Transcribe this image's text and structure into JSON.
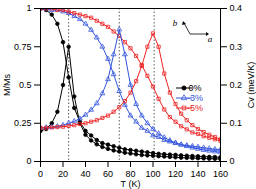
{
  "chart_data": {
    "type": "line",
    "x_label": "T (K)",
    "y_label": "M/Ms",
    "y2_label": "Cv (meV/K)",
    "x": [
      0,
      5,
      10,
      15,
      20,
      25,
      30,
      35,
      40,
      45,
      50,
      55,
      60,
      65,
      70,
      75,
      80,
      85,
      90,
      95,
      100,
      105,
      110,
      115,
      120,
      125,
      130,
      135,
      140,
      145,
      150,
      155,
      160
    ],
    "xlim": [
      0,
      160
    ],
    "xticks": [
      0,
      20,
      40,
      60,
      80,
      100,
      120,
      140,
      160
    ],
    "ylim": [
      0,
      1
    ],
    "yticks": [
      0,
      0.25,
      0.5,
      0.75,
      1
    ],
    "y2lim": [
      0,
      0.4
    ],
    "y2ticks": [
      0,
      0.1,
      0.2,
      0.3,
      0.4
    ],
    "vlines": [
      25,
      70,
      101
    ],
    "annotations": [
      {
        "text": "a"
      },
      {
        "text": "b"
      }
    ],
    "legend": "right",
    "series": [
      {
        "name": "0%",
        "color": "#000000",
        "marker": "circle",
        "values": [
          1,
          0.99,
          0.96,
          0.9,
          0.78,
          0.55,
          0.35,
          0.26,
          0.2,
          0.17,
          0.14,
          0.12,
          0.11,
          0.1,
          0.09,
          0.08,
          0.075,
          0.07,
          0.065,
          0.06,
          0.055,
          0.05,
          0.048,
          0.045,
          0.043,
          0.04,
          0.038,
          0.036,
          0.034,
          0.032,
          0.03,
          0.029,
          0.028
        ]
      },
      {
        "name": "-3%",
        "color": "#3355dd",
        "marker": "triangle-open",
        "values": [
          1,
          1,
          0.99,
          0.99,
          0.98,
          0.97,
          0.95,
          0.93,
          0.9,
          0.86,
          0.81,
          0.75,
          0.67,
          0.57,
          0.46,
          0.37,
          0.3,
          0.26,
          0.22,
          0.2,
          0.17,
          0.16,
          0.14,
          0.13,
          0.12,
          0.11,
          0.105,
          0.1,
          0.095,
          0.09,
          0.085,
          0.08,
          0.078
        ]
      },
      {
        "name": "-5%",
        "color": "#ee2222",
        "marker": "square-open",
        "values": [
          1,
          1,
          1,
          0.99,
          0.99,
          0.98,
          0.97,
          0.96,
          0.95,
          0.94,
          0.92,
          0.9,
          0.88,
          0.85,
          0.82,
          0.78,
          0.74,
          0.69,
          0.63,
          0.56,
          0.49,
          0.41,
          0.34,
          0.29,
          0.26,
          0.23,
          0.21,
          0.19,
          0.18,
          0.165,
          0.155,
          0.145,
          0.135
        ]
      },
      {
        "name": "0%",
        "color": "#000000",
        "marker": "circle",
        "axis": "y2",
        "values": [
          0.08,
          0.085,
          0.1,
          0.13,
          0.2,
          0.3,
          0.17,
          0.1,
          0.07,
          0.055,
          0.045,
          0.038,
          0.033,
          0.029,
          0.026,
          0.023,
          0.021,
          0.019,
          0.017,
          0.016,
          0.015,
          0.014,
          0.013,
          0.012,
          0.011,
          0.01,
          0.0095,
          0.009,
          0.0085,
          0.008,
          0.0075,
          0.007,
          0.0065
        ]
      },
      {
        "name": "-3%",
        "color": "#3355dd",
        "marker": "triangle-open",
        "axis": "y2",
        "values": [
          0.088,
          0.089,
          0.09,
          0.092,
          0.095,
          0.1,
          0.105,
          0.112,
          0.122,
          0.135,
          0.152,
          0.178,
          0.215,
          0.28,
          0.345,
          0.28,
          0.2,
          0.15,
          0.12,
          0.1,
          0.085,
          0.073,
          0.063,
          0.055,
          0.049,
          0.044,
          0.04,
          0.036,
          0.033,
          0.03,
          0.028,
          0.026,
          0.024
        ]
      },
      {
        "name": "-5%",
        "color": "#ee2222",
        "marker": "square-open",
        "axis": "y2",
        "values": [
          0.088,
          0.088,
          0.089,
          0.09,
          0.091,
          0.093,
          0.095,
          0.098,
          0.1,
          0.104,
          0.108,
          0.114,
          0.12,
          0.13,
          0.142,
          0.158,
          0.18,
          0.21,
          0.25,
          0.3,
          0.335,
          0.3,
          0.23,
          0.18,
          0.15,
          0.125,
          0.108,
          0.095,
          0.085,
          0.077,
          0.07,
          0.064,
          0.058
        ]
      }
    ]
  }
}
